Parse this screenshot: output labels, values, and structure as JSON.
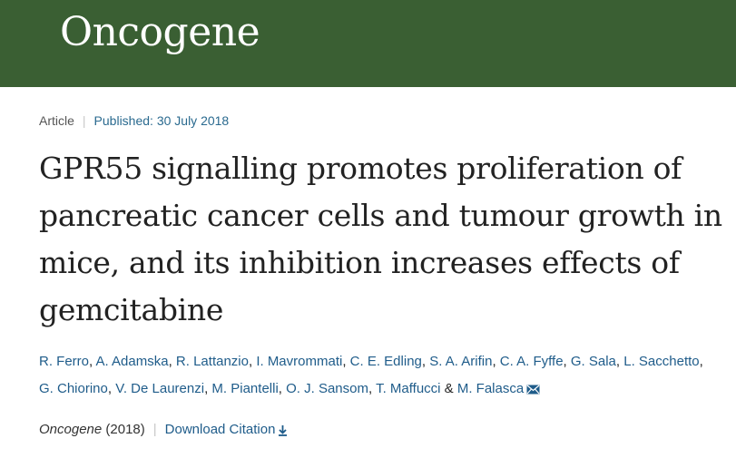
{
  "header": {
    "journal_logo": "Oncogene",
    "banner_color": "#3a5f33"
  },
  "meta": {
    "article_type": "Article",
    "published": "Published: 30 July 2018"
  },
  "title": "GPR55 signalling promotes proliferation of pancreatic cancer cells and tumour growth in mice, and its inhibition increases effects of gemcitabine",
  "authors": [
    "R. Ferro",
    "A. Adamska",
    "R. Lattanzio",
    "I. Mavrommati",
    "C. E. Edling",
    "S. A. Arifin",
    "C. A. Fyffe",
    "G. Sala",
    "L. Sacchetto",
    "G. Chiorino",
    "V. De Laurenzi",
    "M. Piantelli",
    "O. J. Sansom",
    "T. Maffucci",
    "M. Falasca"
  ],
  "author_separator": ", ",
  "author_last_separator": " & ",
  "icons": {
    "mail": "mail-icon",
    "download": "download-icon"
  },
  "citation": {
    "journal": "Oncogene",
    "year": "(2018)",
    "download_label": "Download Citation"
  },
  "colors": {
    "link": "#1f5c8a",
    "text": "#222222"
  }
}
